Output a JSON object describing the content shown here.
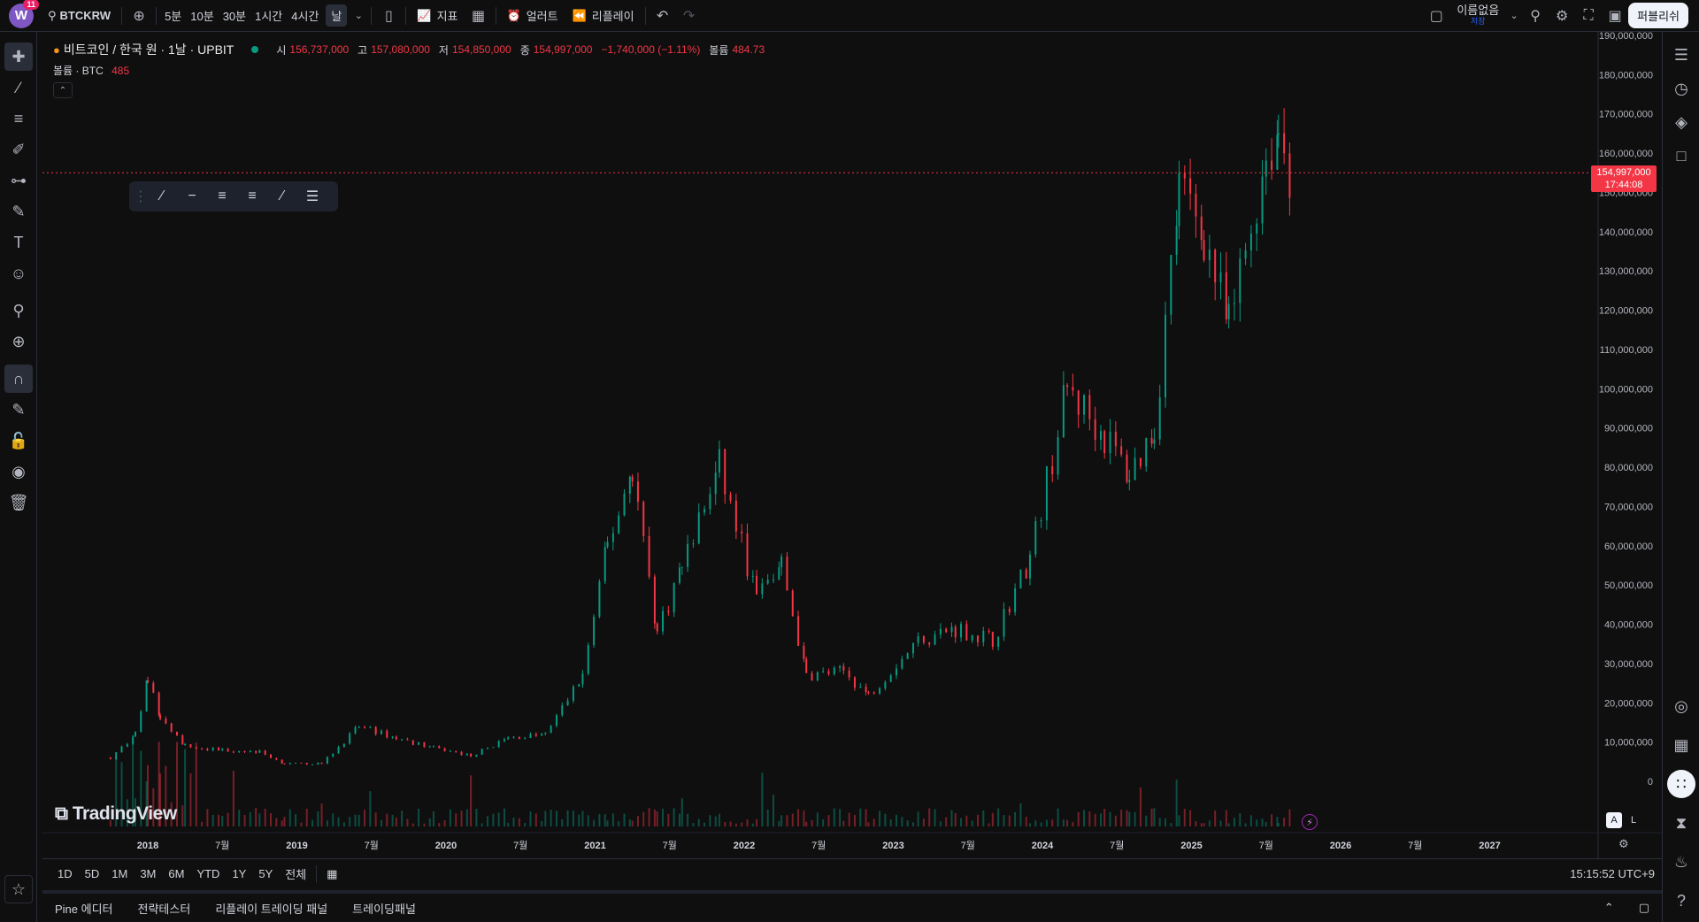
{
  "topbar": {
    "avatar_letter": "W",
    "avatar_badge": "11",
    "symbol": "BTCKRW",
    "timeframes": [
      "5분",
      "10분",
      "30분",
      "1시간",
      "4시간",
      "날"
    ],
    "active_timeframe": "날",
    "indicators_label": "지표",
    "alert_label": "얼러트",
    "replay_label": "리플레이",
    "layout_name": "이름없음",
    "layout_saved": "저장",
    "publish_label": "퍼블리쉬"
  },
  "legend": {
    "title": "비트코인 / 한국 원 · 1날 · UPBIT",
    "open_label": "시",
    "open": "156,737,000",
    "high_label": "고",
    "high": "157,080,000",
    "low_label": "저",
    "low": "154,850,000",
    "close_label": "종",
    "close": "154,997,000",
    "change": "−1,740,000 (−1.11%)",
    "volume_label": "볼륨",
    "volume": "484.73",
    "vol_study_label": "볼륨 · BTC",
    "vol_study_value": "485"
  },
  "price_tag": {
    "price": "154,997,000",
    "countdown": "17:44:08"
  },
  "range_buttons": [
    "1D",
    "5D",
    "1M",
    "3M",
    "6M",
    "YTD",
    "1Y",
    "5Y",
    "전체"
  ],
  "clock": "15:15:52 UTC+9",
  "bottom_tabs": [
    "Pine 에디터",
    "전략테스터",
    "리플레이 트레이딩 패널",
    "트레이딩패널"
  ],
  "logo_text": "TradingView",
  "scale_buttons": {
    "auto": "A",
    "log": "L"
  },
  "colors": {
    "up": "#089981",
    "down": "#f23645",
    "background": "#0f0f0f",
    "grid": "#1a1d24"
  },
  "chart_data": {
    "type": "candlestick",
    "title": "비트코인 / 한국 원 · 1날 · UPBIT",
    "y_tick_labels": [
      "0",
      "10,000,000",
      "20,000,000",
      "30,000,000",
      "40,000,000",
      "50,000,000",
      "60,000,000",
      "70,000,000",
      "80,000,000",
      "90,000,000",
      "100,000,000",
      "110,000,000",
      "120,000,000",
      "130,000,000",
      "140,000,000",
      "150,000,000",
      "160,000,000",
      "170,000,000",
      "180,000,000",
      "190,000,000"
    ],
    "ylim": [
      0,
      190000000
    ],
    "x_tick_labels": [
      "2018",
      "7월",
      "2019",
      "7월",
      "2020",
      "7월",
      "2021",
      "7월",
      "2022",
      "7월",
      "2023",
      "7월",
      "2024",
      "7월",
      "2025",
      "7월",
      "2026",
      "7월",
      "2027"
    ],
    "last_price": 154997000,
    "price_path": [
      [
        "2017-10",
        6000000
      ],
      [
        "2017-12",
        12000000
      ],
      [
        "2018-01",
        26000000
      ],
      [
        "2018-02",
        16000000
      ],
      [
        "2018-04",
        9000000
      ],
      [
        "2018-07",
        8000000
      ],
      [
        "2018-10",
        7500000
      ],
      [
        "2018-12",
        4500000
      ],
      [
        "2019-03",
        4500000
      ],
      [
        "2019-06",
        14000000
      ],
      [
        "2019-09",
        11000000
      ],
      [
        "2019-12",
        8500000
      ],
      [
        "2020-03",
        6500000
      ],
      [
        "2020-06",
        11000000
      ],
      [
        "2020-09",
        12000000
      ],
      [
        "2020-12",
        27000000
      ],
      [
        "2021-02",
        60000000
      ],
      [
        "2021-04",
        80000000
      ],
      [
        "2021-06",
        38000000
      ],
      [
        "2021-08",
        55000000
      ],
      [
        "2021-11",
        80000000
      ],
      [
        "2022-02",
        47000000
      ],
      [
        "2022-04",
        55000000
      ],
      [
        "2022-06",
        27000000
      ],
      [
        "2022-09",
        28000000
      ],
      [
        "2022-11",
        22000000
      ],
      [
        "2023-03",
        36000000
      ],
      [
        "2023-06",
        39000000
      ],
      [
        "2023-09",
        36000000
      ],
      [
        "2023-12",
        57000000
      ],
      [
        "2024-03",
        100000000
      ],
      [
        "2024-06",
        88000000
      ],
      [
        "2024-08",
        78000000
      ],
      [
        "2024-10",
        90000000
      ],
      [
        "2024-12",
        150000000
      ],
      [
        "2025-02",
        140000000
      ],
      [
        "2025-04",
        115000000
      ],
      [
        "2025-07",
        160000000
      ],
      [
        "2025-08",
        166000000
      ],
      [
        "2025-09",
        154997000
      ]
    ]
  }
}
